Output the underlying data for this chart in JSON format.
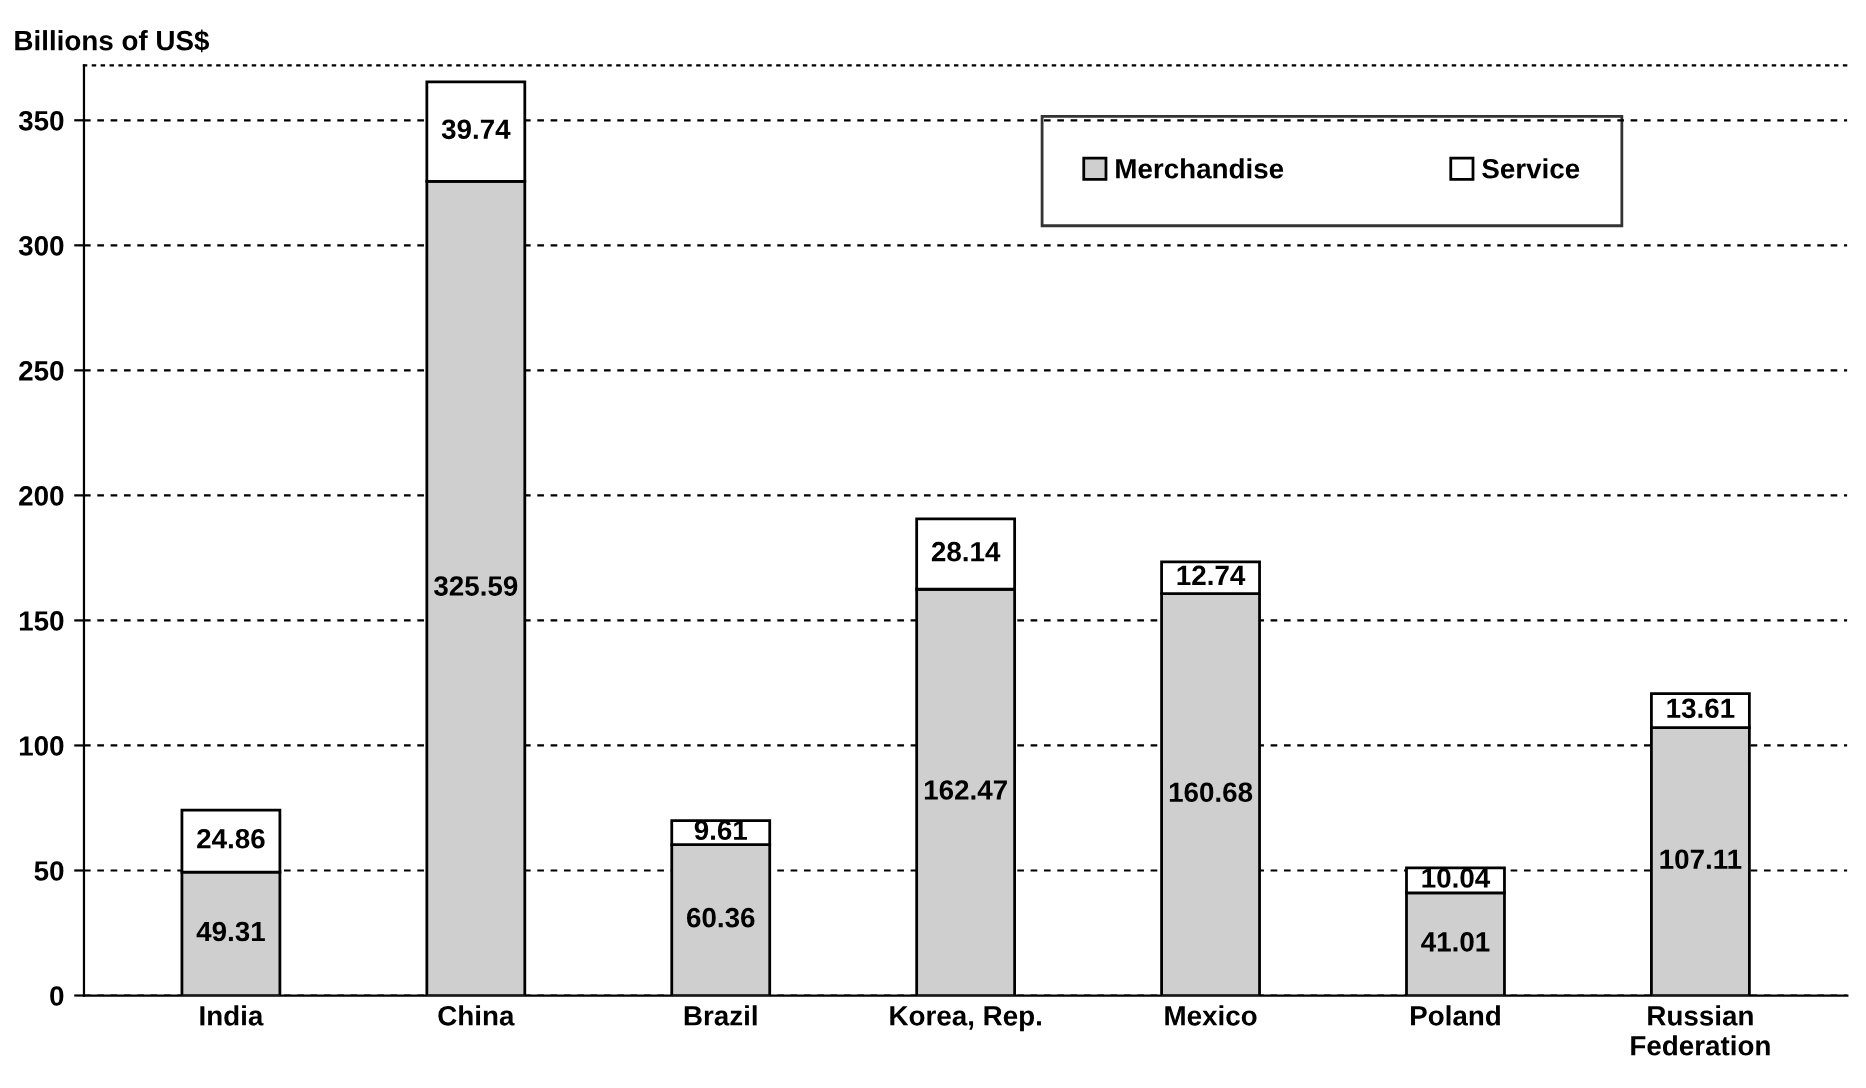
{
  "chart_data": {
    "type": "bar",
    "stacked": true,
    "ylabel": "Billions of US$",
    "categories": [
      "India",
      "China",
      "Brazil",
      "Korea, Rep.",
      "Mexico",
      "Poland",
      "Russian\nFederation"
    ],
    "series": [
      {
        "name": "Merchandise",
        "color": "#cfcfcf",
        "values": [
          49.31,
          325.59,
          60.36,
          162.47,
          160.68,
          41.01,
          107.11
        ]
      },
      {
        "name": "Service",
        "color": "#ffffff",
        "values": [
          24.86,
          39.74,
          9.61,
          28.14,
          12.74,
          10.04,
          13.61
        ]
      }
    ],
    "ylim": [
      0,
      372
    ],
    "yticks": [
      0,
      50,
      100,
      150,
      200,
      250,
      300,
      350
    ],
    "grid": "y",
    "legend": "top right",
    "data_labels": true
  }
}
